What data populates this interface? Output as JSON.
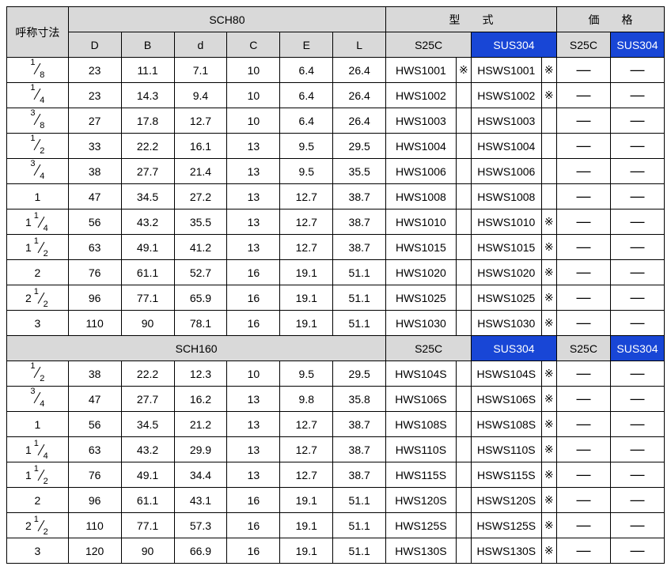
{
  "headers": {
    "size": "呼称寸法",
    "sch80": "SCH80",
    "sch160": "SCH160",
    "model": "型　　式",
    "price": "価　　格",
    "dims": [
      "D",
      "B",
      "d",
      "C",
      "E",
      "L"
    ],
    "s25c": "S25C",
    "sus304": "SUS304"
  },
  "colors": {
    "header_bg": "#d9d9d9",
    "blue_bg": "#1846d6",
    "blue_fg": "#ffffff",
    "border": "#000000"
  },
  "fonts": {
    "base_size": 14,
    "frac_size": 11
  },
  "dash": "—",
  "ast": "※",
  "sch80_rows": [
    {
      "size": "1/8",
      "D": "23",
      "B": "11.1",
      "d": "7.1",
      "C": "10",
      "E": "6.4",
      "L": "26.4",
      "m1": "HWS1001",
      "a1": "※",
      "m2": "HSWS1001",
      "a2": "※"
    },
    {
      "size": "1/4",
      "D": "23",
      "B": "14.3",
      "d": "9.4",
      "C": "10",
      "E": "6.4",
      "L": "26.4",
      "m1": "HWS1002",
      "a1": "",
      "m2": "HSWS1002",
      "a2": "※"
    },
    {
      "size": "3/8",
      "D": "27",
      "B": "17.8",
      "d": "12.7",
      "C": "10",
      "E": "6.4",
      "L": "26.4",
      "m1": "HWS1003",
      "a1": "",
      "m2": "HSWS1003",
      "a2": ""
    },
    {
      "size": "1/2",
      "D": "33",
      "B": "22.2",
      "d": "16.1",
      "C": "13",
      "E": "9.5",
      "L": "29.5",
      "m1": "HWS1004",
      "a1": "",
      "m2": "HSWS1004",
      "a2": ""
    },
    {
      "size": "3/4",
      "D": "38",
      "B": "27.7",
      "d": "21.4",
      "C": "13",
      "E": "9.5",
      "L": "35.5",
      "m1": "HWS1006",
      "a1": "",
      "m2": "HSWS1006",
      "a2": ""
    },
    {
      "size": "1",
      "D": "47",
      "B": "34.5",
      "d": "27.2",
      "C": "13",
      "E": "12.7",
      "L": "38.7",
      "m1": "HWS1008",
      "a1": "",
      "m2": "HSWS1008",
      "a2": ""
    },
    {
      "size": "1 1/4",
      "D": "56",
      "B": "43.2",
      "d": "35.5",
      "C": "13",
      "E": "12.7",
      "L": "38.7",
      "m1": "HWS1010",
      "a1": "",
      "m2": "HSWS1010",
      "a2": "※"
    },
    {
      "size": "1 1/2",
      "D": "63",
      "B": "49.1",
      "d": "41.2",
      "C": "13",
      "E": "12.7",
      "L": "38.7",
      "m1": "HWS1015",
      "a1": "",
      "m2": "HSWS1015",
      "a2": "※"
    },
    {
      "size": "2",
      "D": "76",
      "B": "61.1",
      "d": "52.7",
      "C": "16",
      "E": "19.1",
      "L": "51.1",
      "m1": "HWS1020",
      "a1": "",
      "m2": "HSWS1020",
      "a2": "※"
    },
    {
      "size": "2 1/2",
      "D": "96",
      "B": "77.1",
      "d": "65.9",
      "C": "16",
      "E": "19.1",
      "L": "51.1",
      "m1": "HWS1025",
      "a1": "",
      "m2": "HSWS1025",
      "a2": "※"
    },
    {
      "size": "3",
      "D": "110",
      "B": "90",
      "d": "78.1",
      "C": "16",
      "E": "19.1",
      "L": "51.1",
      "m1": "HWS1030",
      "a1": "",
      "m2": "HSWS1030",
      "a2": "※"
    }
  ],
  "sch160_rows": [
    {
      "size": "1/2",
      "D": "38",
      "B": "22.2",
      "d": "12.3",
      "C": "10",
      "E": "9.5",
      "L": "29.5",
      "m1": "HWS104S",
      "a1": "",
      "m2": "HSWS104S",
      "a2": "※"
    },
    {
      "size": "3/4",
      "D": "47",
      "B": "27.7",
      "d": "16.2",
      "C": "13",
      "E": "9.8",
      "L": "35.8",
      "m1": "HWS106S",
      "a1": "",
      "m2": "HSWS106S",
      "a2": "※"
    },
    {
      "size": "1",
      "D": "56",
      "B": "34.5",
      "d": "21.2",
      "C": "13",
      "E": "12.7",
      "L": "38.7",
      "m1": "HWS108S",
      "a1": "",
      "m2": "HSWS108S",
      "a2": "※"
    },
    {
      "size": "1 1/4",
      "D": "63",
      "B": "43.2",
      "d": "29.9",
      "C": "13",
      "E": "12.7",
      "L": "38.7",
      "m1": "HWS110S",
      "a1": "",
      "m2": "HSWS110S",
      "a2": "※"
    },
    {
      "size": "1 1/2",
      "D": "76",
      "B": "49.1",
      "d": "34.4",
      "C": "13",
      "E": "12.7",
      "L": "38.7",
      "m1": "HWS115S",
      "a1": "",
      "m2": "HSWS115S",
      "a2": "※"
    },
    {
      "size": "2",
      "D": "96",
      "B": "61.1",
      "d": "43.1",
      "C": "16",
      "E": "19.1",
      "L": "51.1",
      "m1": "HWS120S",
      "a1": "",
      "m2": "HSWS120S",
      "a2": "※"
    },
    {
      "size": "2 1/2",
      "D": "110",
      "B": "77.1",
      "d": "57.3",
      "C": "16",
      "E": "19.1",
      "L": "51.1",
      "m1": "HWS125S",
      "a1": "",
      "m2": "HSWS125S",
      "a2": "※"
    },
    {
      "size": "3",
      "D": "120",
      "B": "90",
      "d": "66.9",
      "C": "16",
      "E": "19.1",
      "L": "51.1",
      "m1": "HWS130S",
      "a1": "",
      "m2": "HSWS130S",
      "a2": "※"
    }
  ]
}
